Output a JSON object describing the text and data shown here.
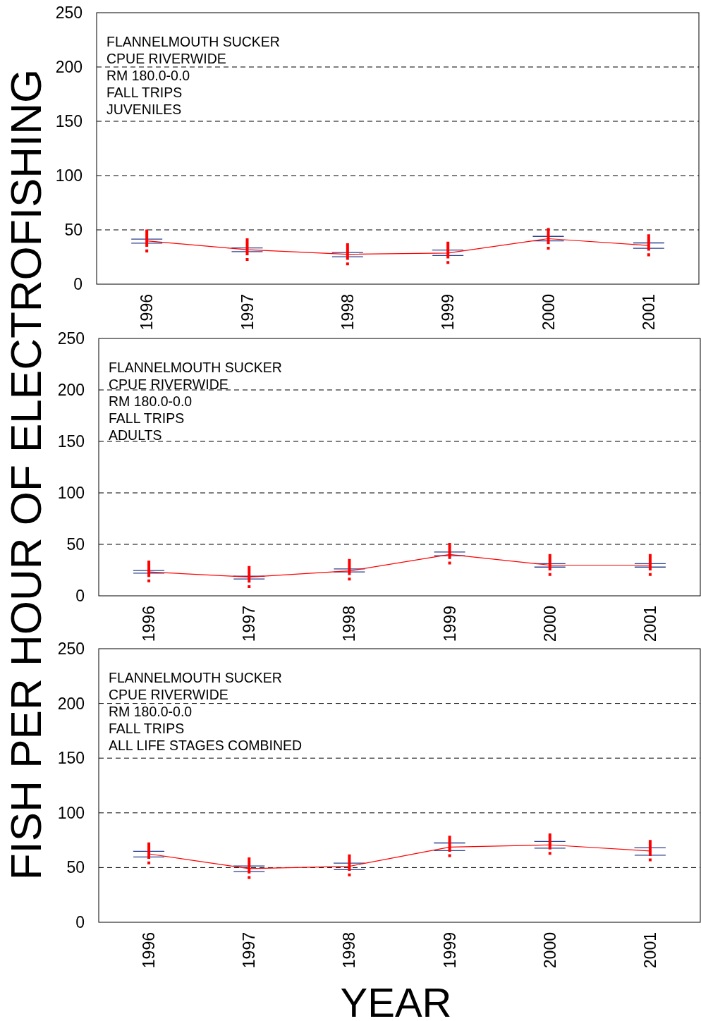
{
  "chart_data": [
    {
      "type": "line",
      "categories": [
        "1996",
        "1997",
        "1998",
        "1999",
        "2000",
        "2001"
      ],
      "ylim": [
        0,
        250
      ],
      "yticks": [
        0,
        50,
        100,
        150,
        200,
        250
      ],
      "grid": "y",
      "annotations": [
        "FLANNELMOUTH SUCKER",
        "CPUE RIVERWIDE",
        "RM 180.0-0.0",
        "FALL TRIPS",
        "JUVENILES"
      ],
      "series": [
        {
          "type": "line",
          "color": "#ff0000",
          "values": [
            39.8,
            31.8,
            27.5,
            28.6,
            41.9,
            35.6
          ]
        },
        {
          "type": "box",
          "color": "#2a3f8f",
          "boxes": [
            {
              "low": 29.2,
              "q1": 37.7,
              "q3": 41.5,
              "high": 50.3
            },
            {
              "low": 21.4,
              "q1": 29.9,
              "q3": 33.4,
              "high": 42.2
            },
            {
              "low": 17.3,
              "q1": 25.3,
              "q3": 29.2,
              "high": 37.7
            },
            {
              "low": 18.6,
              "q1": 26.4,
              "q3": 31.4,
              "high": 39.1
            },
            {
              "low": 31.8,
              "q1": 39.8,
              "q3": 44,
              "high": 51.8
            },
            {
              "low": 25.7,
              "q1": 33.1,
              "q3": 38,
              "high": 46
            }
          ]
        }
      ]
    },
    {
      "type": "line",
      "categories": [
        "1996",
        "1997",
        "1998",
        "1999",
        "2000",
        "2001"
      ],
      "ylim": [
        0,
        250
      ],
      "yticks": [
        0,
        50,
        100,
        150,
        200,
        250
      ],
      "grid": "y",
      "ylabel": "FISH PER HOUR OF ELECTROFISHING",
      "annotations": [
        "FLANNELMOUTH SUCKER",
        "CPUE RIVERWIDE",
        "RM 180.0-0.0",
        "FALL TRIPS",
        "ADULTS"
      ],
      "series": [
        {
          "type": "line",
          "color": "#ff0000",
          "values": [
            23.2,
            18.3,
            24.2,
            40.2,
            29.8,
            29.8
          ]
        },
        {
          "type": "box",
          "color": "#2a3f8f",
          "boxes": [
            {
              "low": 13.1,
              "q1": 22,
              "q3": 24.6,
              "high": 34.2
            },
            {
              "low": 7.5,
              "q1": 16.4,
              "q3": 19,
              "high": 29
            },
            {
              "low": 14.9,
              "q1": 23.2,
              "q3": 26.1,
              "high": 35.8
            },
            {
              "low": 30.5,
              "q1": 39,
              "q3": 42.5,
              "high": 51.4
            },
            {
              "low": 19.4,
              "q1": 27.9,
              "q3": 31.3,
              "high": 40.5
            },
            {
              "low": 19.4,
              "q1": 27.9,
              "q3": 31.3,
              "high": 40.5
            }
          ]
        }
      ]
    },
    {
      "type": "line",
      "categories": [
        "1996",
        "1997",
        "1998",
        "1999",
        "2000",
        "2001"
      ],
      "ylim": [
        0,
        250
      ],
      "yticks": [
        0,
        50,
        100,
        150,
        200,
        250
      ],
      "grid": "y",
      "xlabel": "YEAR",
      "annotations": [
        "FLANNELMOUTH SUCKER",
        "CPUE RIVERWIDE",
        "RM 180.0-0.0",
        "FALL TRIPS",
        "ALL LIFE STAGES COMBINED"
      ],
      "series": [
        {
          "type": "line",
          "color": "#ff0000",
          "values": [
            62.5,
            49.1,
            51.2,
            68.7,
            70.7,
            65.1
          ]
        },
        {
          "type": "box",
          "color": "#2a3f8f",
          "boxes": [
            {
              "low": 53,
              "q1": 59.7,
              "q3": 64.9,
              "high": 72.9
            },
            {
              "low": 39.7,
              "q1": 46.3,
              "q3": 51.5,
              "high": 59.3
            },
            {
              "low": 42.1,
              "q1": 48.1,
              "q3": 54,
              "high": 62
            },
            {
              "low": 59.6,
              "q1": 65.5,
              "q3": 72.5,
              "high": 79.1
            },
            {
              "low": 61.7,
              "q1": 67.7,
              "q3": 73.9,
              "high": 81.2
            },
            {
              "low": 55.7,
              "q1": 61.3,
              "q3": 68,
              "high": 75.3
            }
          ]
        }
      ]
    }
  ]
}
